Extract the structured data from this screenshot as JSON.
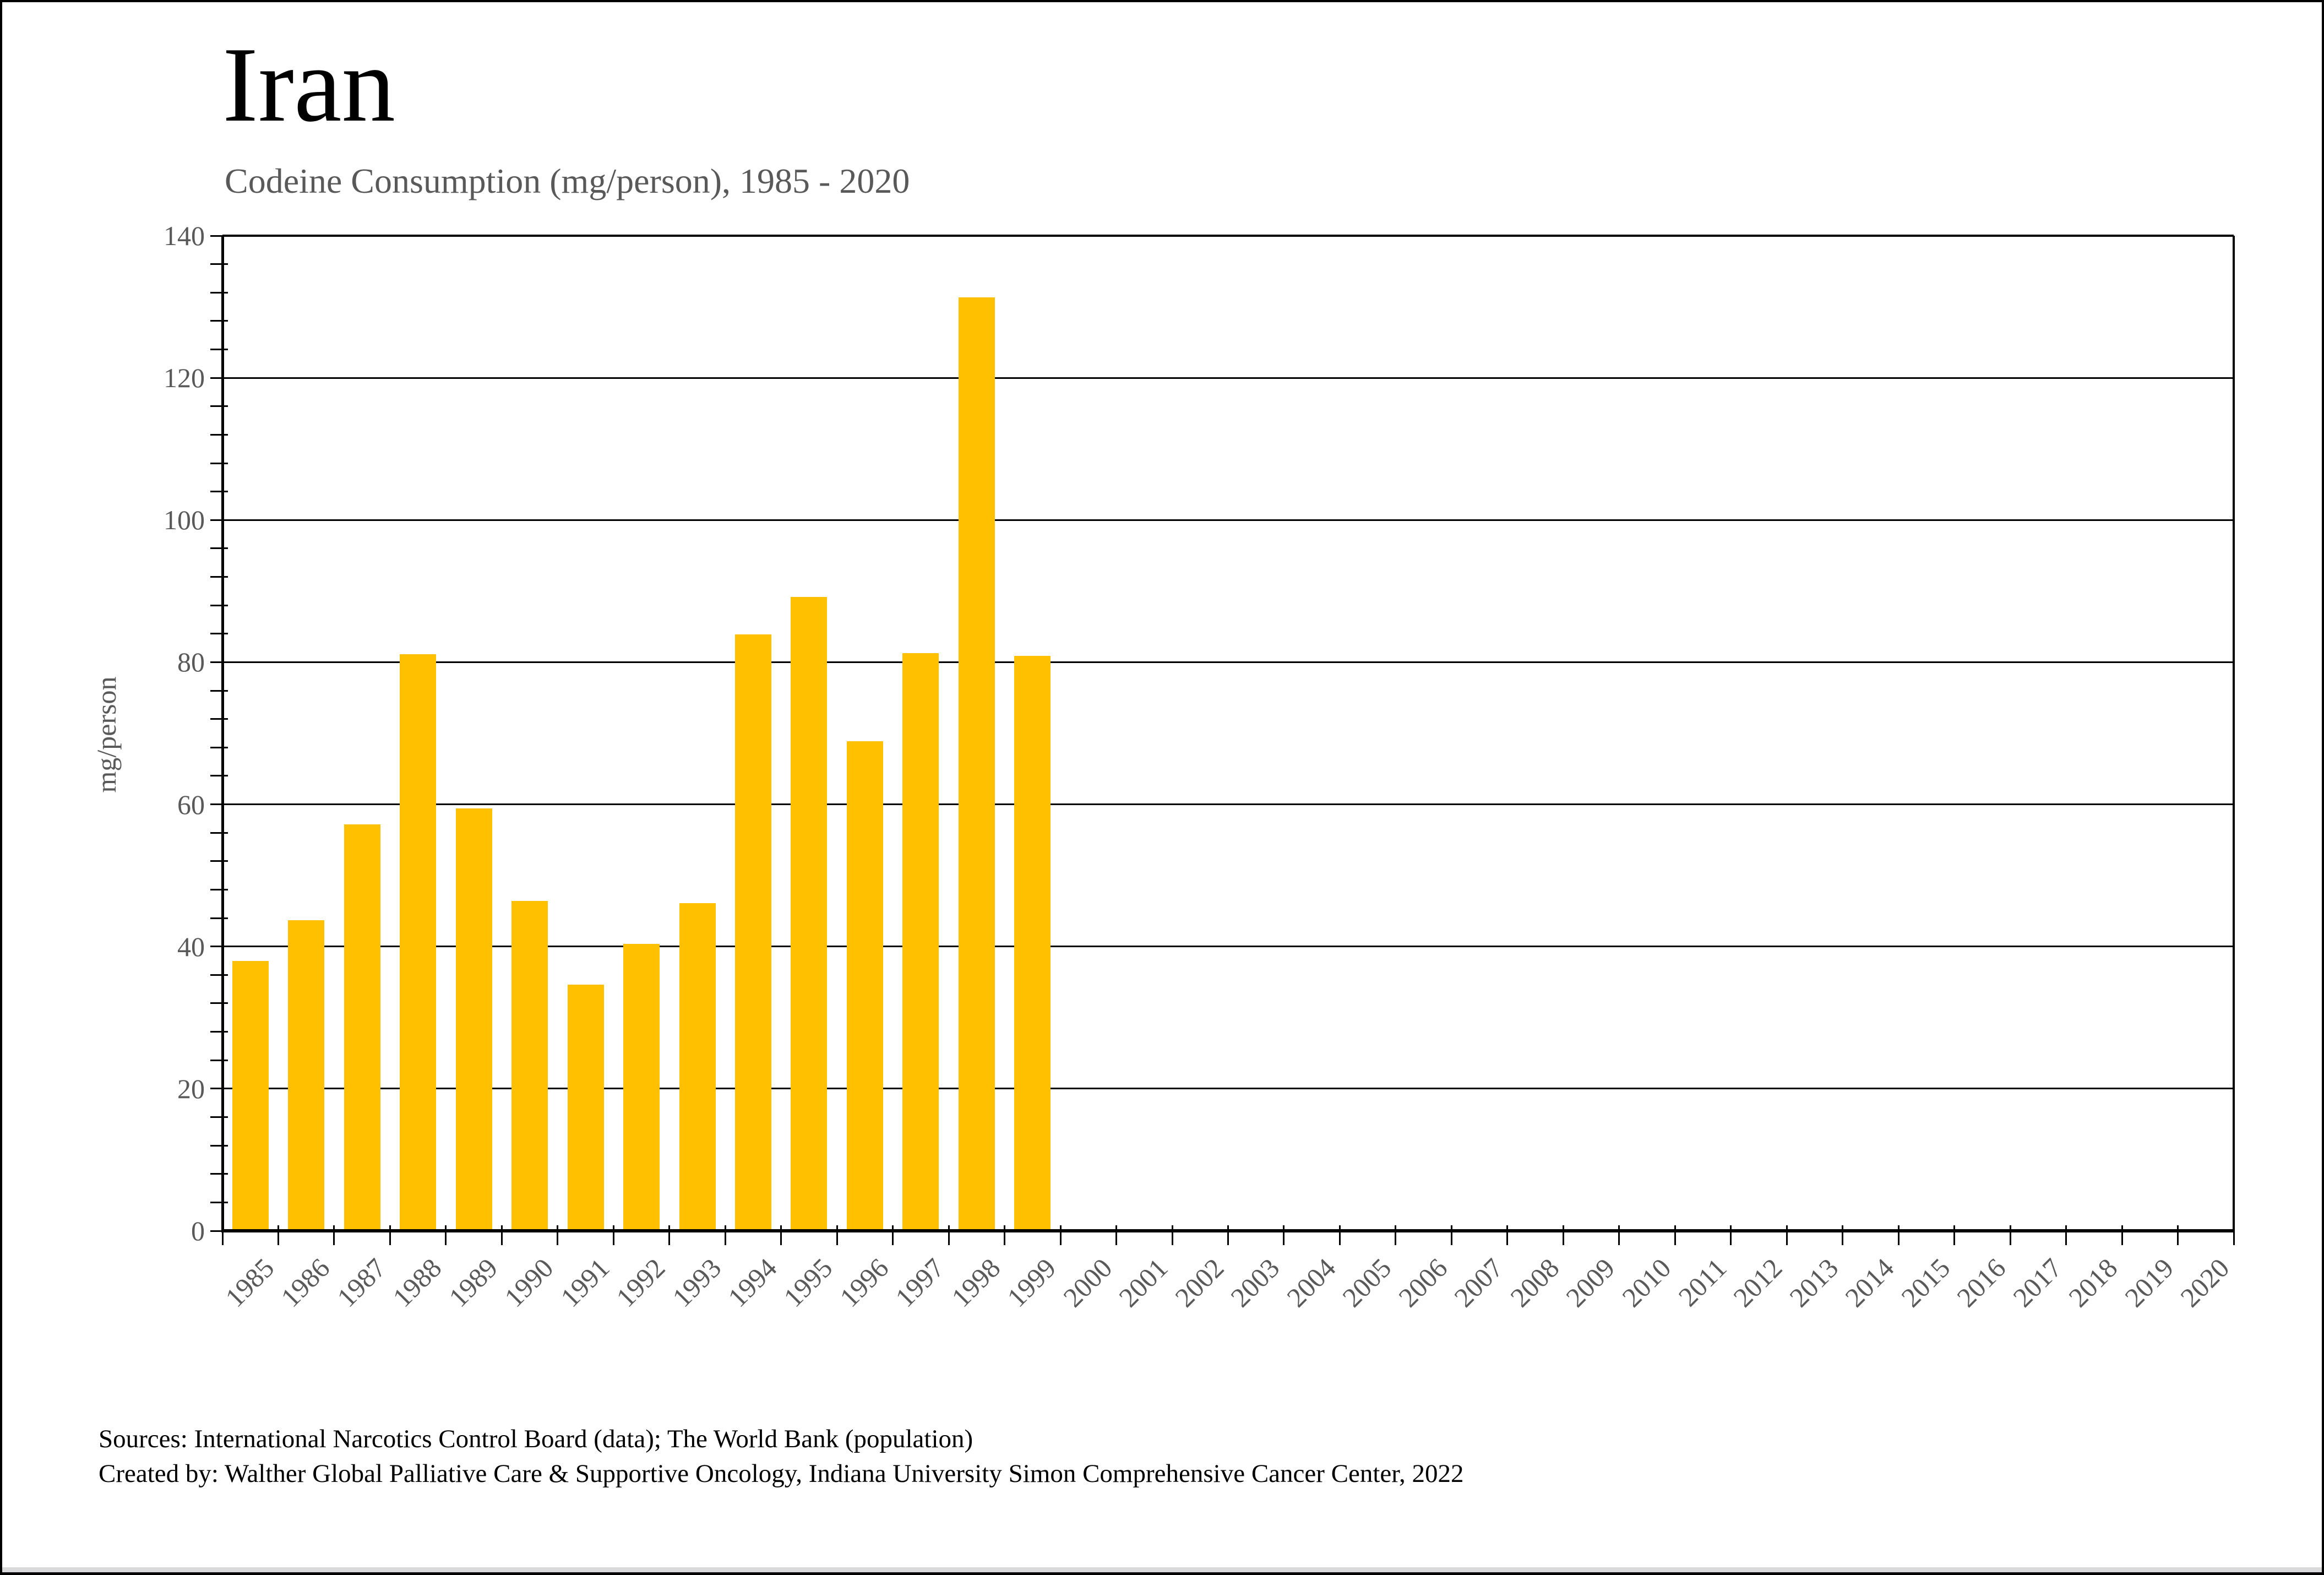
{
  "title": "Iran",
  "subtitle": "Codeine Consumption (mg/person), 1985 - 2020",
  "y_axis_title": "mg/person",
  "footer": {
    "sources": "Sources: International Narcotics Control Board (data); The World Bank (population)",
    "created_by": "Created by: Walther Global Palliative Care & Supportive Oncology, Indiana University Simon Comprehensive Cancer Center, 2022"
  },
  "colors": {
    "bar": "#FFC000",
    "axis_text": "#595959",
    "grid_and_axis": "#000000",
    "background": "#ffffff"
  },
  "chart_data": {
    "type": "bar",
    "title": "Iran",
    "subtitle": "Codeine Consumption (mg/person), 1985 - 2020",
    "xlabel": "",
    "ylabel": "mg/person",
    "ylim": [
      0,
      140
    ],
    "ytick_interval": 20,
    "yminor_tick_interval": 4,
    "grid": "horizontal",
    "legend": "none",
    "categories": [
      1985,
      1986,
      1987,
      1988,
      1989,
      1990,
      1991,
      1992,
      1993,
      1994,
      1995,
      1996,
      1997,
      1998,
      1999,
      2000,
      2001,
      2002,
      2003,
      2004,
      2005,
      2006,
      2007,
      2008,
      2009,
      2010,
      2011,
      2012,
      2013,
      2014,
      2015,
      2016,
      2017,
      2018,
      2019,
      2020
    ],
    "values": [
      38.0,
      43.7,
      57.2,
      81.1,
      59.4,
      46.4,
      34.6,
      40.4,
      46.1,
      83.9,
      89.2,
      68.9,
      81.3,
      131.3,
      80.9,
      null,
      null,
      null,
      null,
      null,
      null,
      null,
      null,
      null,
      null,
      null,
      null,
      null,
      null,
      null,
      null,
      null,
      null,
      null,
      null,
      null
    ]
  }
}
